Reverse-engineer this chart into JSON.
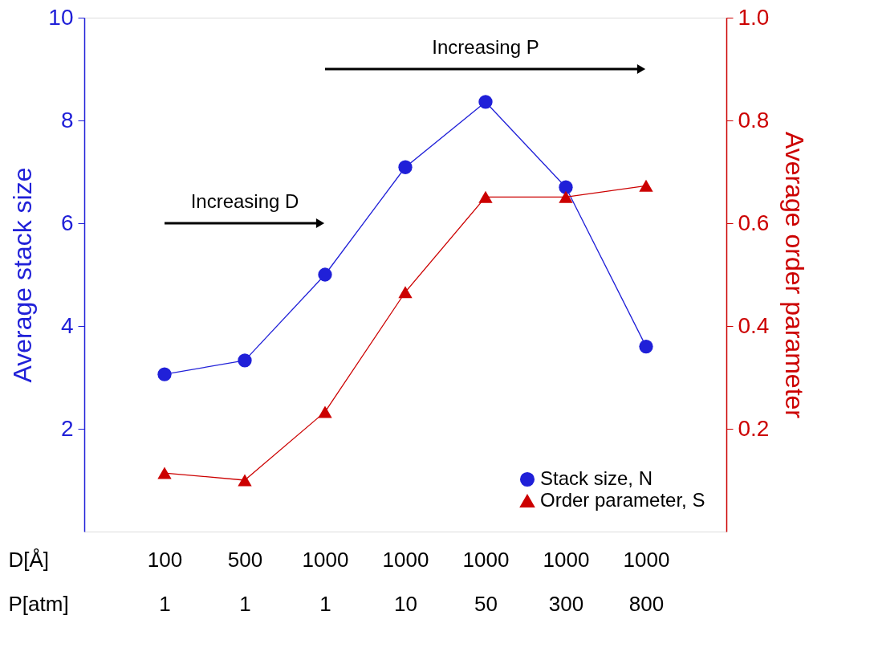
{
  "chart_data": {
    "type": "line",
    "categories": [
      "100\n1",
      "500\n1",
      "1000\n1",
      "1000\n10",
      "1000\n50",
      "1000\n300",
      "1000\n800"
    ],
    "xlabel": "D[Å]\nP[atm]",
    "ylabel": "Average stack size",
    "y2label": "Average order parameter",
    "ylim": [
      0,
      10
    ],
    "yticks": [
      2,
      4,
      6,
      8,
      10
    ],
    "y2lim": [
      0,
      1
    ],
    "y2ticks": [
      0.2,
      0.4,
      0.6,
      0.8,
      {
        "value": 1,
        "label": "1.0"
      }
    ],
    "series": [
      {
        "name": "Stack size, N",
        "color": "#2020d8",
        "marker": "circle",
        "values": [
          3.06,
          3.33,
          5.0,
          7.09,
          8.36,
          6.7,
          3.6
        ]
      },
      {
        "name": "Order parameter, S",
        "color": "#cc0000",
        "marker": "triangle",
        "axis": "y2",
        "values": [
          0.114,
          0.1,
          0.233,
          0.466,
          0.651,
          0.651,
          0.673
        ]
      }
    ],
    "annotations": [
      "Increasing D",
      "Increasing P"
    ],
    "legend": "bottom right"
  }
}
